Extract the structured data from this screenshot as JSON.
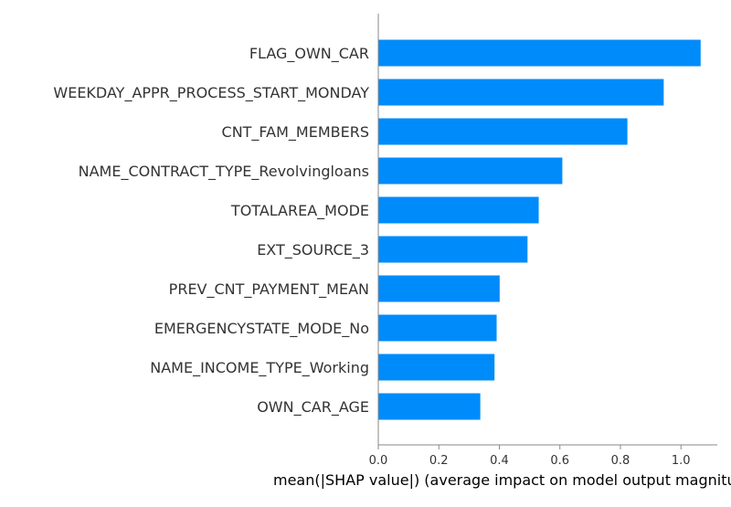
{
  "chart_data": {
    "type": "bar",
    "orientation": "horizontal",
    "categories": [
      "FLAG_OWN_CAR",
      "WEEKDAY_APPR_PROCESS_START_MONDAY",
      "CNT_FAM_MEMBERS",
      "NAME_CONTRACT_TYPE_Revolvingloans",
      "TOTALAREA_MODE",
      "EXT_SOURCE_3",
      "PREV_CNT_PAYMENT_MEAN",
      "EMERGENCYSTATE_MODE_No",
      "NAME_INCOME_TYPE_Working",
      "OWN_CAR_AGE"
    ],
    "values": [
      1.065,
      0.943,
      0.823,
      0.608,
      0.53,
      0.493,
      0.401,
      0.391,
      0.384,
      0.337
    ],
    "xlabel": "mean(|SHAP value|) (average impact on model output magnitude)",
    "ylabel": "",
    "xlim": [
      0,
      1.12
    ],
    "xticks": [
      "0.0",
      "0.2",
      "0.4",
      "0.6",
      "0.8",
      "1.0"
    ],
    "grid": false,
    "bar_color": "#008bfb",
    "axis_color": "#888888"
  }
}
